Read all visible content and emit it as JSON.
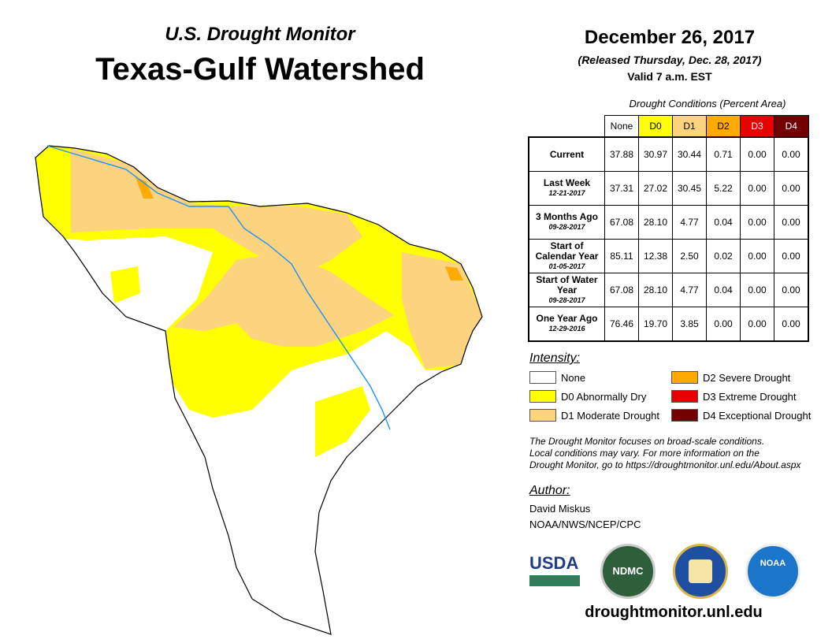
{
  "header": {
    "subtitle": "U.S. Drought Monitor",
    "title": "Texas-Gulf Watershed",
    "date": "December 26, 2017",
    "released": "(Released Thursday, Dec. 28, 2017)",
    "valid": "Valid 7 a.m. EST"
  },
  "table": {
    "caption": "Drought Conditions (Percent Area)",
    "columns": [
      {
        "label": "None",
        "color": "#ffffff",
        "text": "#000"
      },
      {
        "label": "D0",
        "color": "#ffff00",
        "text": "#000"
      },
      {
        "label": "D1",
        "color": "#fcd37f",
        "text": "#000"
      },
      {
        "label": "D2",
        "color": "#ffaa00",
        "text": "#000"
      },
      {
        "label": "D3",
        "color": "#e60000",
        "text": "#fff"
      },
      {
        "label": "D4",
        "color": "#730000",
        "text": "#fff"
      }
    ],
    "rows": [
      {
        "label": "Current",
        "sub": "",
        "values": [
          "37.88",
          "30.97",
          "30.44",
          "0.71",
          "0.00",
          "0.00"
        ]
      },
      {
        "label": "Last Week",
        "sub": "12-21-2017",
        "values": [
          "37.31",
          "27.02",
          "30.45",
          "5.22",
          "0.00",
          "0.00"
        ]
      },
      {
        "label": "3 Months Ago",
        "sub": "09-28-2017",
        "values": [
          "67.08",
          "28.10",
          "4.77",
          "0.04",
          "0.00",
          "0.00"
        ]
      },
      {
        "label": "Start of Calendar Year",
        "sub": "01-05-2017",
        "values": [
          "85.11",
          "12.38",
          "2.50",
          "0.02",
          "0.00",
          "0.00"
        ]
      },
      {
        "label": "Start of Water Year",
        "sub": "09-28-2017",
        "values": [
          "67.08",
          "28.10",
          "4.77",
          "0.04",
          "0.00",
          "0.00"
        ]
      },
      {
        "label": "One Year Ago",
        "sub": "12-29-2016",
        "values": [
          "76.46",
          "19.70",
          "3.85",
          "0.00",
          "0.00",
          "0.00"
        ]
      }
    ]
  },
  "legend": {
    "title": "Intensity:",
    "items": [
      {
        "label": "None",
        "color": "#ffffff"
      },
      {
        "label": "D0 Abnormally Dry",
        "color": "#ffff00"
      },
      {
        "label": "D1 Moderate Drought",
        "color": "#fcd37f"
      },
      {
        "label": "D2 Severe Drought",
        "color": "#ffaa00"
      },
      {
        "label": "D3 Extreme Drought",
        "color": "#e60000"
      },
      {
        "label": "D4 Exceptional Drought",
        "color": "#730000"
      }
    ]
  },
  "note": [
    "The Drought Monitor focuses on broad-scale conditions.",
    "Local conditions may vary. For more information on the",
    "Drought Monitor, go to https://droughtmonitor.unl.edu/About.aspx"
  ],
  "author": {
    "title": "Author:",
    "name": "David Miskus",
    "org": "NOAA/NWS/NCEP/CPC"
  },
  "logos": {
    "usda": "USDA",
    "ndmc": "NDMC",
    "doc": "DOC",
    "noaa": "NOAA"
  },
  "footer": {
    "url": "droughtmonitor.unl.edu"
  }
}
